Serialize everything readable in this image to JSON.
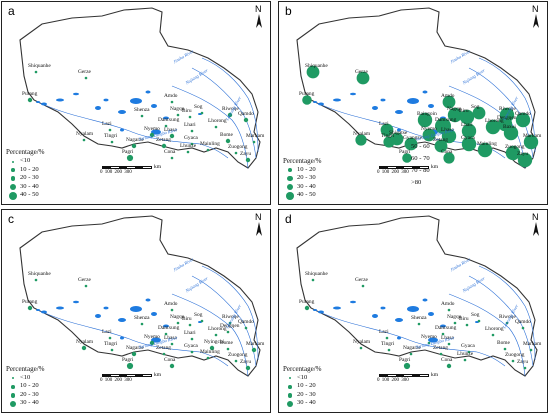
{
  "panels": [
    {
      "letter": "a",
      "legend_title": "Percentage/%",
      "legend": [
        "<10",
        "10 - 20",
        "20 - 30",
        "30 - 40",
        "40 - 50"
      ],
      "legend_extra": [],
      "scale_unit": "km",
      "scale_ticks": "0 100 200 300",
      "north": "N",
      "stations": [
        {
          "name": "Shiquanhe",
          "pct_class": 0
        },
        {
          "name": "Gerze",
          "pct_class": 0
        },
        {
          "name": "Purang",
          "pct_class": 1
        },
        {
          "name": "Amdo",
          "pct_class": 0
        },
        {
          "name": "Shenza",
          "pct_class": 0
        },
        {
          "name": "Nagqu",
          "pct_class": 0
        },
        {
          "name": "Biru",
          "pct_class": 0
        },
        {
          "name": "Sog",
          "pct_class": 0
        },
        {
          "name": "Damxung",
          "pct_class": 0
        },
        {
          "name": "Lhari",
          "pct_class": 0
        },
        {
          "name": "Riwoqe",
          "pct_class": 1
        },
        {
          "name": "Qamdo",
          "pct_class": 1
        },
        {
          "name": "Lhorong",
          "pct_class": 0
        },
        {
          "name": "Lazi",
          "pct_class": 0
        },
        {
          "name": "Nyemo",
          "pct_class": 1
        },
        {
          "name": "Lhasa",
          "pct_class": 1
        },
        {
          "name": "Nyalam",
          "pct_class": 0
        },
        {
          "name": "Tingri",
          "pct_class": 0
        },
        {
          "name": "Gyaca",
          "pct_class": 0
        },
        {
          "name": "Nagarze",
          "pct_class": 1
        },
        {
          "name": "Zetang",
          "pct_class": 1
        },
        {
          "name": "Bome",
          "pct_class": 1
        },
        {
          "name": "Markam",
          "pct_class": 0
        },
        {
          "name": "Mainling",
          "pct_class": 0
        },
        {
          "name": "Pagri",
          "pct_class": 2
        },
        {
          "name": "Cona",
          "pct_class": 0
        },
        {
          "name": "Lhunze",
          "pct_class": 0
        },
        {
          "name": "Zuogong",
          "pct_class": 0
        },
        {
          "name": "Zayu",
          "pct_class": 1
        }
      ]
    },
    {
      "letter": "b",
      "legend_title": "Percentage/%",
      "legend": [
        "10 - 20",
        "20 - 30",
        "30 - 40",
        "40 - 50"
      ],
      "legend_extra": [
        "50 - 60",
        "60 - 70",
        "70 - 80",
        ">80"
      ],
      "scale_unit": "km",
      "scale_ticks": "0 100 200 300",
      "north": "N",
      "stations": [
        {
          "name": "Shiquanhe",
          "pct_class": 5
        },
        {
          "name": "Gerze",
          "pct_class": 5
        },
        {
          "name": "Purang",
          "pct_class": 3
        },
        {
          "name": "Amdo",
          "pct_class": 5
        },
        {
          "name": "Nagqu",
          "pct_class": 6
        },
        {
          "name": "Biru",
          "pct_class": 6
        },
        {
          "name": "Sog",
          "pct_class": 5
        },
        {
          "name": "Baingoin",
          "pct_class": 6
        },
        {
          "name": "Damxung",
          "pct_class": 7
        },
        {
          "name": "Lhari",
          "pct_class": 6
        },
        {
          "name": "Riwoqe",
          "pct_class": 6
        },
        {
          "name": "Qamdo",
          "pct_class": 6
        },
        {
          "name": "Dengqen",
          "pct_class": 6
        },
        {
          "name": "Lazi",
          "pct_class": 5
        },
        {
          "name": "Nyemo",
          "pct_class": 5
        },
        {
          "name": "Lhasa",
          "pct_class": 6
        },
        {
          "name": "Lhorong",
          "pct_class": 6
        },
        {
          "name": "Baxoi",
          "pct_class": 6
        },
        {
          "name": "Nyalam",
          "pct_class": 4
        },
        {
          "name": "Tingri",
          "pct_class": 4
        },
        {
          "name": "Gyaca",
          "pct_class": 6
        },
        {
          "name": "Shigatse",
          "pct_class": 5
        },
        {
          "name": "Gyangze",
          "pct_class": 5
        },
        {
          "name": "Zetang",
          "pct_class": 5
        },
        {
          "name": "Mainling",
          "pct_class": 6
        },
        {
          "name": "Markam",
          "pct_class": 6
        },
        {
          "name": "Pagri",
          "pct_class": 3
        },
        {
          "name": "Cona",
          "pct_class": 4
        },
        {
          "name": "Zuogong",
          "pct_class": 6
        },
        {
          "name": "Zayu",
          "pct_class": 6
        }
      ]
    },
    {
      "letter": "c",
      "legend_title": "Percentage/%",
      "legend": [
        "<10",
        "10 - 20",
        "20 - 30",
        "30 - 40"
      ],
      "legend_extra": [],
      "scale_unit": "km",
      "scale_ticks": "0 100 200 300",
      "north": "N",
      "stations": [
        {
          "name": "Shiquanhe",
          "pct_class": 0
        },
        {
          "name": "Gerze",
          "pct_class": 0
        },
        {
          "name": "Purang",
          "pct_class": 1
        },
        {
          "name": "Amdo",
          "pct_class": 0
        },
        {
          "name": "Shenza",
          "pct_class": 0
        },
        {
          "name": "Nagqu",
          "pct_class": 0
        },
        {
          "name": "Biru",
          "pct_class": 0
        },
        {
          "name": "Sog",
          "pct_class": 0
        },
        {
          "name": "Damxung",
          "pct_class": 0
        },
        {
          "name": "Lhari",
          "pct_class": 0
        },
        {
          "name": "Riwoqe",
          "pct_class": 0
        },
        {
          "name": "Qamdo",
          "pct_class": 0
        },
        {
          "name": "Lhorong",
          "pct_class": 0
        },
        {
          "name": "Dengqen",
          "pct_class": 0
        },
        {
          "name": "Lazi",
          "pct_class": 0
        },
        {
          "name": "Nyemo",
          "pct_class": 1
        },
        {
          "name": "Lhasa",
          "pct_class": 0
        },
        {
          "name": "Nyalam",
          "pct_class": 1
        },
        {
          "name": "Tingri",
          "pct_class": 0
        },
        {
          "name": "Gyaca",
          "pct_class": 0
        },
        {
          "name": "Nagarze",
          "pct_class": 1
        },
        {
          "name": "Zetang",
          "pct_class": 0
        },
        {
          "name": "Nyingchi",
          "pct_class": 1
        },
        {
          "name": "Bome",
          "pct_class": 0
        },
        {
          "name": "Zuogong",
          "pct_class": 0
        },
        {
          "name": "Markam",
          "pct_class": 1
        },
        {
          "name": "Mainling",
          "pct_class": 0
        },
        {
          "name": "Pagri",
          "pct_class": 2
        },
        {
          "name": "Cona",
          "pct_class": 1
        },
        {
          "name": "Zayu",
          "pct_class": 1
        }
      ]
    },
    {
      "letter": "d",
      "legend_title": "Percentage/%",
      "legend": [
        "<10",
        "10 - 20",
        "20 - 30",
        "30 - 40"
      ],
      "legend_extra": [],
      "scale_unit": "km",
      "scale_ticks": "0 100 200 300",
      "north": "N",
      "stations": [
        {
          "name": "Shiquanhe",
          "pct_class": 0
        },
        {
          "name": "Gerze",
          "pct_class": 0
        },
        {
          "name": "Purang",
          "pct_class": 1
        },
        {
          "name": "Amdo",
          "pct_class": 0
        },
        {
          "name": "Shenza",
          "pct_class": 0
        },
        {
          "name": "Nagqu",
          "pct_class": 0
        },
        {
          "name": "Biru",
          "pct_class": 0
        },
        {
          "name": "Sog",
          "pct_class": 0
        },
        {
          "name": "Damxung",
          "pct_class": 0
        },
        {
          "name": "Riwoqe",
          "pct_class": 0
        },
        {
          "name": "Qamdo",
          "pct_class": 0
        },
        {
          "name": "Lhorong",
          "pct_class": 0
        },
        {
          "name": "Lazi",
          "pct_class": 0
        },
        {
          "name": "Nyemo",
          "pct_class": 0
        },
        {
          "name": "Lhasa",
          "pct_class": 0
        },
        {
          "name": "Nyalam",
          "pct_class": 0
        },
        {
          "name": "Tingri",
          "pct_class": 0
        },
        {
          "name": "Nagarze",
          "pct_class": 0
        },
        {
          "name": "Zetang",
          "pct_class": 0
        },
        {
          "name": "Gyaca",
          "pct_class": 0
        },
        {
          "name": "Lhunze",
          "pct_class": 0
        },
        {
          "name": "Bome",
          "pct_class": 0
        },
        {
          "name": "Zuogong",
          "pct_class": 0
        },
        {
          "name": "Markam",
          "pct_class": 0
        },
        {
          "name": "Pagri",
          "pct_class": 2
        },
        {
          "name": "Cona",
          "pct_class": 1
        },
        {
          "name": "Zayu",
          "pct_class": 0
        }
      ]
    }
  ],
  "rivers": [
    "Jinsha River",
    "Nujiang River",
    "Lancang River",
    "Yarlung Zangbo River"
  ],
  "colors": {
    "dot": "#1f9a63",
    "lake": "#1e7be0",
    "river": "#2a6fd6",
    "border": "#333333"
  }
}
